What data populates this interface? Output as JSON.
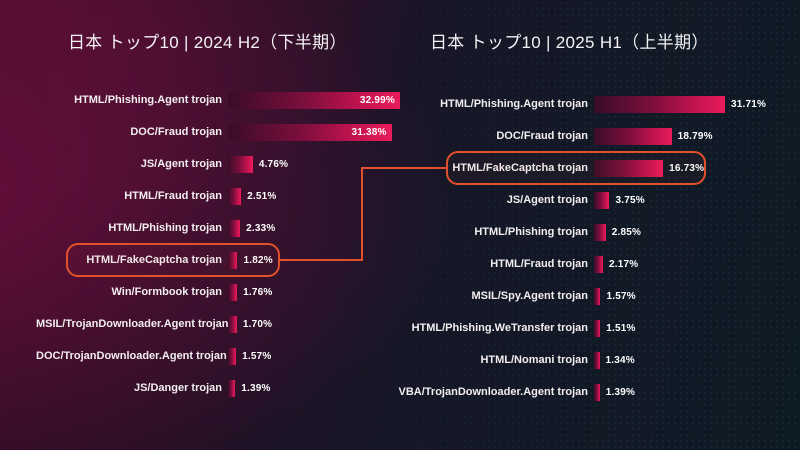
{
  "chart_data": [
    {
      "type": "bar",
      "orientation": "horizontal",
      "title": "日本 トップ10 | 2024 H2（下半期）",
      "unit": "%",
      "categories": [
        "HTML/Phishing.Agent trojan",
        "DOC/Fraud trojan",
        "JS/Agent trojan",
        "HTML/Fraud trojan",
        "HTML/Phishing trojan",
        "HTML/FakeCaptcha trojan",
        "Win/Formbook trojan",
        "MSIL/TrojanDownloader.Agent trojan",
        "DOC/TrojanDownloader.Agent trojan",
        "JS/Danger trojan"
      ],
      "values": [
        32.99,
        31.38,
        4.76,
        2.51,
        2.33,
        1.82,
        1.76,
        1.7,
        1.57,
        1.39
      ],
      "value_labels": [
        "32.99%",
        "31.38%",
        "4.76%",
        "2.51%",
        "2.33%",
        "1.82%",
        "1.76%",
        "1.70%",
        "1.57%",
        "1.39%"
      ],
      "highlighted_category": "HTML/FakeCaptcha trojan",
      "axes": "none",
      "grid": false,
      "legend": false
    },
    {
      "type": "bar",
      "orientation": "horizontal",
      "title": "日本 トップ10 | 2025 H1（上半期）",
      "unit": "%",
      "categories": [
        "HTML/Phishing.Agent trojan",
        "DOC/Fraud trojan",
        "HTML/FakeCaptcha trojan",
        "JS/Agent trojan",
        "HTML/Phishing trojan",
        "HTML/Fraud trojan",
        "MSIL/Spy.Agent trojan",
        "HTML/Phishing.WeTransfer trojan",
        "HTML/Nomani trojan",
        "VBA/TrojanDownloader.Agent trojan"
      ],
      "values": [
        31.71,
        18.79,
        16.73,
        3.75,
        2.85,
        2.17,
        1.57,
        1.51,
        1.34,
        1.39
      ],
      "value_labels": [
        "31.71%",
        "18.79%",
        "16.73%",
        "3.75%",
        "2.85%",
        "2.17%",
        "1.57%",
        "1.51%",
        "1.34%",
        "1.39%"
      ],
      "highlighted_category": "HTML/FakeCaptcha trojan",
      "axes": "none",
      "grid": false,
      "legend": false
    }
  ],
  "colors": {
    "bar_gradient_start": "#3a0c28",
    "bar_gradient_end": "#ea1c5c",
    "highlight_stroke": "#e2512b",
    "title_text": "#f4f2f4",
    "label_text": "#f2eef0",
    "value_text": "#ffffff"
  }
}
